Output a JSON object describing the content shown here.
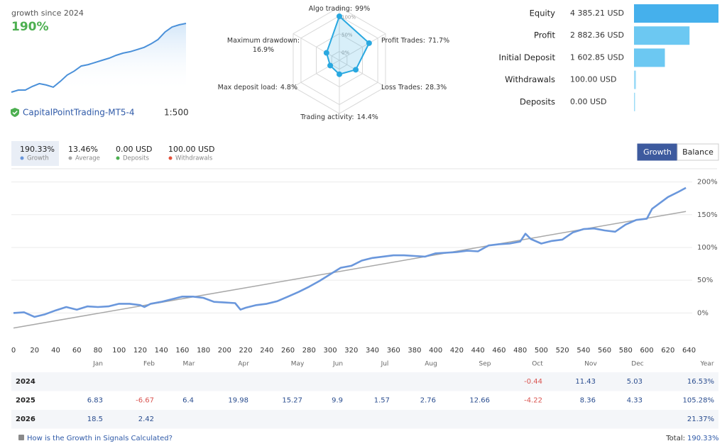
{
  "overview": {
    "label": "growth since 2024",
    "value": "190%",
    "account": "CapitalPointTrading-MT5-4",
    "leverage": "1:500"
  },
  "chart_data": [
    {
      "type": "area",
      "color": "#4a90d9",
      "values": [
        0,
        6,
        6,
        16,
        24,
        20,
        14,
        30,
        48,
        59,
        73,
        77,
        83,
        89,
        95,
        103,
        109,
        113,
        119,
        125,
        135,
        147,
        168,
        182,
        188,
        192
      ]
    },
    {
      "type": "radar",
      "color": "#29a8e0",
      "categories": [
        "Algo trading:",
        "Profit Trades:",
        "Loss Trades:",
        "Trading activity:",
        "Max deposit load:",
        "Maximum drawdown:"
      ],
      "values": [
        99,
        71.7,
        28.3,
        14.4,
        4.8,
        16.9
      ],
      "value_labels": [
        "99%",
        "71.7%",
        "28.3%",
        "14.4%",
        "4.8%",
        "16.9%"
      ],
      "rlim": [
        -25,
        125
      ],
      "rticks": [
        {
          "value": 0,
          "label": "0%"
        },
        {
          "value": 50,
          "label": "50%"
        },
        {
          "value": 100,
          "label": "100%"
        }
      ]
    },
    {
      "type": "bar",
      "orientation": "horizontal",
      "categories": [
        "Equity",
        "Profit",
        "Initial Deposit",
        "Withdrawals",
        "Deposits"
      ],
      "values": [
        4385.21,
        2882.36,
        1602.85,
        100.0,
        0.0
      ],
      "value_labels": [
        "4 385.21 USD",
        "2 882.36 USD",
        "1 602.85 USD",
        "100.00 USD",
        "0.00 USD"
      ],
      "colors": [
        "#45b0ec",
        "#6cc8f2",
        "#6cc8f2",
        "#9fdcf7",
        "#9fdcf7"
      ]
    },
    {
      "type": "line",
      "grid": true,
      "xlim": [
        0,
        643
      ],
      "ylim": [
        -44,
        218
      ],
      "xticks": [
        0,
        20,
        40,
        60,
        80,
        100,
        120,
        140,
        160,
        180,
        200,
        220,
        240,
        260,
        280,
        300,
        320,
        340,
        360,
        380,
        400,
        420,
        440,
        460,
        480,
        500,
        520,
        540,
        560,
        580,
        600,
        620,
        640
      ],
      "yticks": [
        {
          "value": 0,
          "label": "0%"
        },
        {
          "value": 50,
          "label": "50%"
        },
        {
          "value": 100,
          "label": "100%"
        },
        {
          "value": 150,
          "label": "150%"
        },
        {
          "value": 200,
          "label": "200%"
        }
      ],
      "series": [
        {
          "name": "Growth",
          "summary": "190.33%",
          "color": "#6a97dc",
          "x": [
            0,
            10,
            20,
            30,
            40,
            50,
            60,
            70,
            80,
            90,
            100,
            110,
            120,
            124,
            130,
            140,
            150,
            160,
            170,
            180,
            190,
            200,
            210,
            215,
            220,
            230,
            240,
            250,
            260,
            270,
            280,
            290,
            300,
            310,
            320,
            330,
            340,
            350,
            360,
            370,
            380,
            390,
            400,
            410,
            420,
            430,
            440,
            450,
            460,
            470,
            480,
            485,
            490,
            500,
            510,
            520,
            530,
            540,
            550,
            560,
            570,
            580,
            590,
            600,
            605,
            620,
            630,
            637
          ],
          "values": [
            0,
            1,
            -6,
            -2,
            4,
            9,
            5,
            10,
            9,
            10,
            14,
            14,
            12,
            9,
            14,
            17,
            21,
            25,
            25,
            23,
            17,
            16,
            15,
            5,
            8,
            12,
            14,
            18,
            25,
            32,
            40,
            49,
            59,
            69,
            72,
            80,
            84,
            86,
            88,
            88,
            87,
            86,
            91,
            92,
            93,
            95,
            94,
            103,
            105,
            106,
            109,
            121,
            113,
            106,
            110,
            112,
            123,
            128,
            129,
            126,
            124,
            135,
            142,
            144,
            159,
            177,
            185,
            191
          ]
        },
        {
          "name": "Average",
          "summary": "13.46%",
          "color": "#a8a8a8",
          "x": [
            0,
            637
          ],
          "values": [
            -23,
            155
          ]
        }
      ],
      "legend_extra": [
        {
          "name": "Deposits",
          "summary": "0.00 USD",
          "color": "#4caf50"
        },
        {
          "name": "Withdrawals",
          "summary": "100.00 USD",
          "color": "#e5533d"
        }
      ]
    }
  ],
  "tabs": [
    "Growth",
    "Balance"
  ],
  "table": {
    "columns": [
      "Jan",
      "Feb",
      "Mar",
      "Apr",
      "May",
      "Jun",
      "Jul",
      "Aug",
      "Sep",
      "Oct",
      "Nov",
      "Dec",
      "Year"
    ],
    "rows": [
      {
        "year": "2024",
        "months": [
          null,
          null,
          null,
          null,
          null,
          null,
          null,
          null,
          null,
          -0.44,
          11.43,
          5.03
        ],
        "total": "16.53%"
      },
      {
        "year": "2025",
        "months": [
          6.83,
          -6.67,
          6.4,
          19.98,
          15.27,
          9.9,
          1.57,
          2.76,
          12.66,
          -4.22,
          8.36,
          4.33
        ],
        "total": "105.28%"
      },
      {
        "year": "2026",
        "months": [
          18.5,
          2.42,
          null,
          null,
          null,
          null,
          null,
          null,
          null,
          null,
          null,
          null
        ],
        "total": "21.37%"
      }
    ]
  },
  "footer": {
    "link": "How is the Growth in Signals Calculated?",
    "total_label": "Total:",
    "total": "190.33%"
  }
}
